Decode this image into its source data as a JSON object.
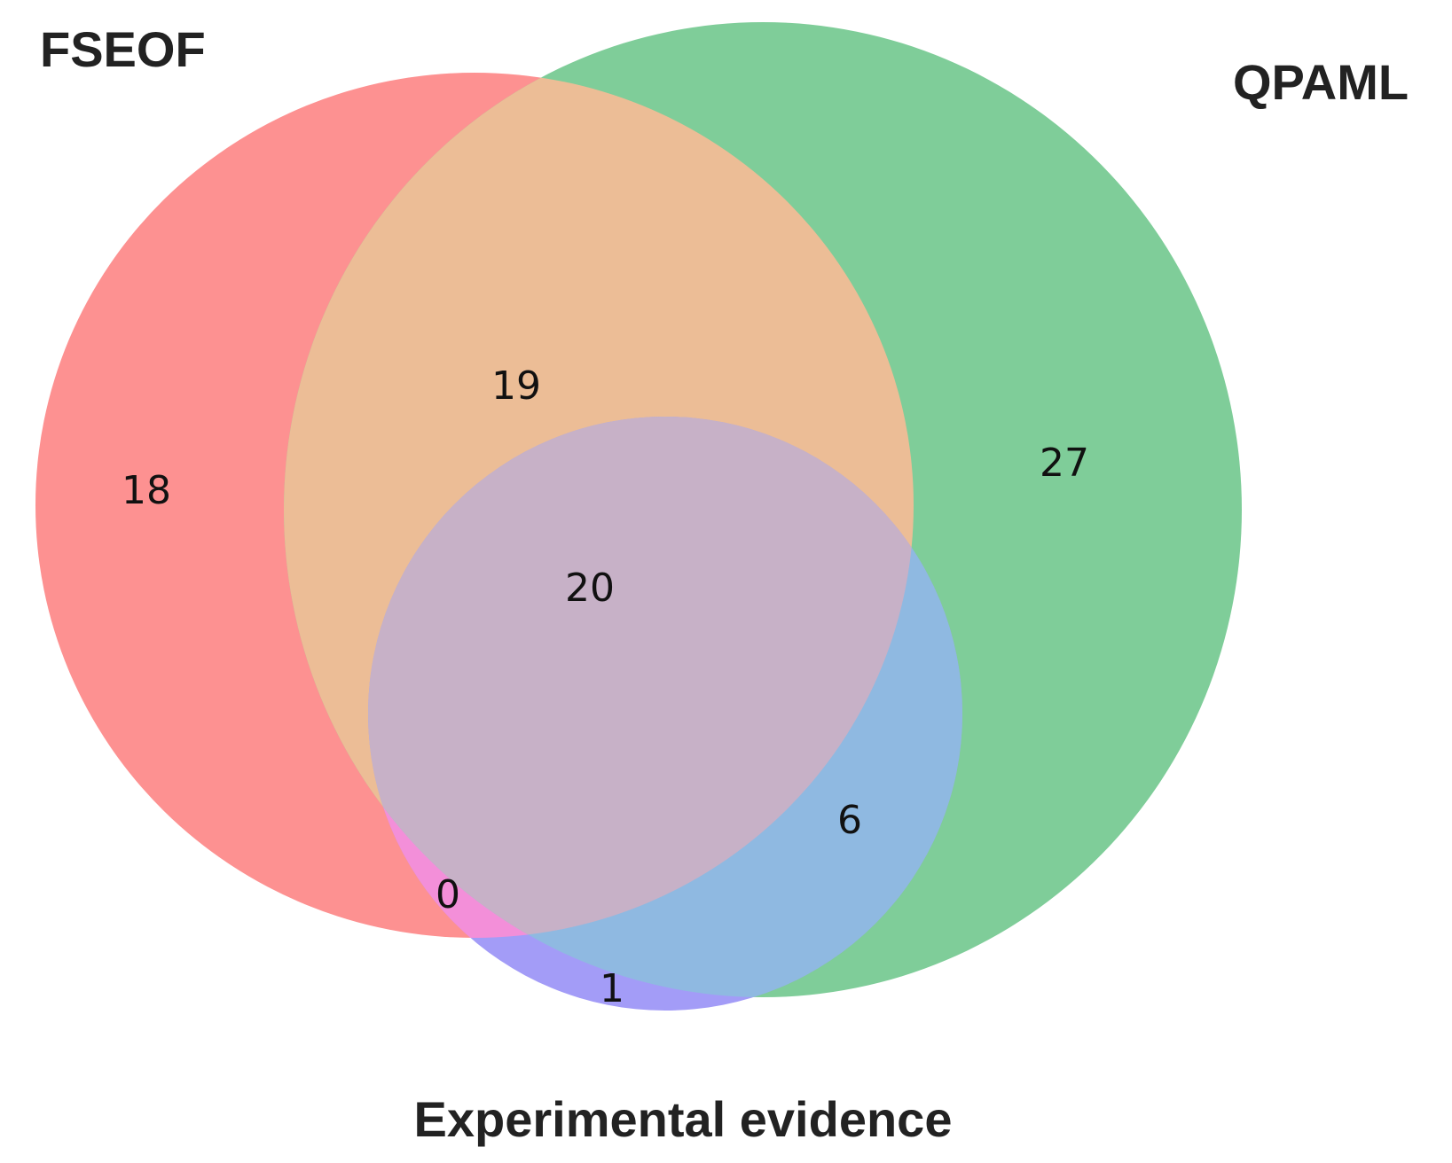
{
  "diagram": {
    "type": "venn3",
    "sets": [
      {
        "id": "A",
        "label": "FSEOF",
        "color": "#fd9191"
      },
      {
        "id": "B",
        "label": "QPAML",
        "color": "#7fcd99"
      },
      {
        "id": "C",
        "label": "Experimental evidence",
        "color": "#8fb9e1"
      }
    ],
    "region_colors": {
      "A_B": "#ecbd96",
      "A_B_C": "#c7b1c7",
      "A_C": "#f38fd9",
      "C_only": "#a39cf7",
      "B_C": "#8fb9e1"
    },
    "regions": {
      "A_only": "18",
      "A_B": "19",
      "B_only": "27",
      "A_B_C": "20",
      "B_C": "6",
      "A_C": "0",
      "C_only": "1"
    }
  }
}
